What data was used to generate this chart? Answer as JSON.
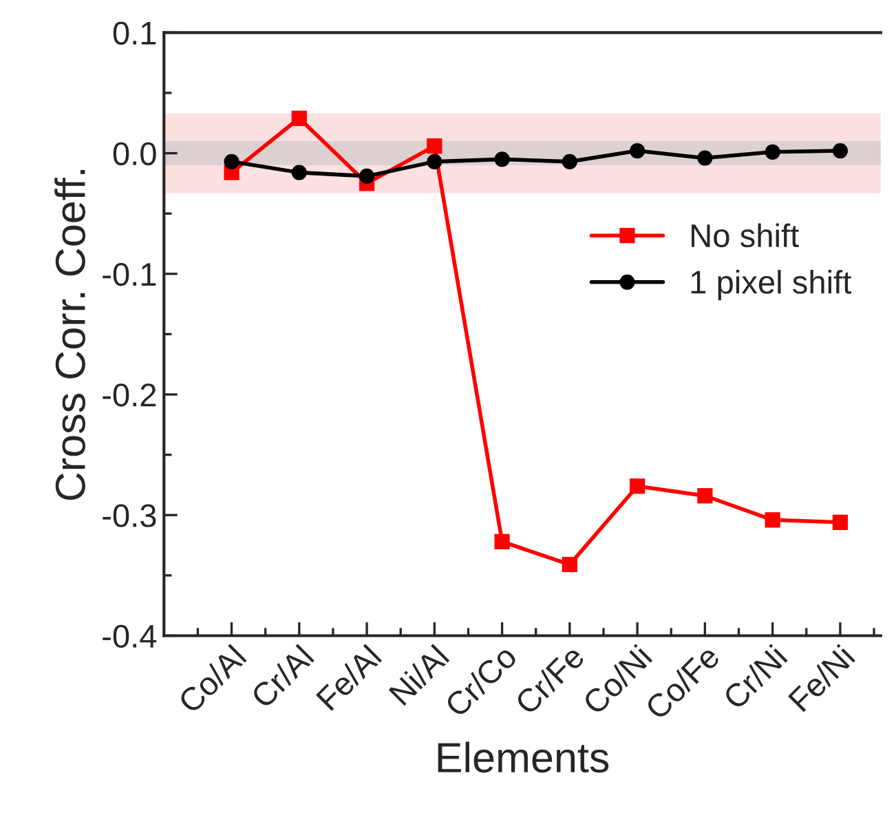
{
  "chart_data": {
    "type": "line",
    "xlabel": "Elements",
    "ylabel": "Cross Corr. Coeff.",
    "categories": [
      "Co/Al",
      "Cr/Al",
      "Fe/Al",
      "Ni/Al",
      "Cr/Co",
      "Cr/Fe",
      "Co/Ni",
      "Co/Fe",
      "Cr/Ni",
      "Fe/Ni"
    ],
    "series": [
      {
        "name": "No shift",
        "color": "#ff0000",
        "marker": "square",
        "values": [
          -0.016,
          0.029,
          -0.025,
          0.006,
          -0.322,
          -0.341,
          -0.276,
          -0.284,
          -0.304,
          -0.306
        ]
      },
      {
        "name": "1 pixel shift",
        "color": "#000000",
        "marker": "circle",
        "values": [
          -0.007,
          -0.016,
          -0.019,
          -0.007,
          -0.005,
          -0.007,
          0.002,
          -0.004,
          0.001,
          0.002
        ]
      }
    ],
    "bands": [
      {
        "axis": "y",
        "from": -0.033,
        "to": 0.033,
        "color": "#fde0e0"
      },
      {
        "axis": "y",
        "from": -0.01,
        "to": 0.01,
        "color": "#dcd0d0"
      }
    ],
    "ylim": [
      -0.4,
      0.1
    ],
    "yticks": [
      -0.4,
      -0.3,
      -0.2,
      -0.1,
      {
        "value": 0.0,
        "label": "0.0"
      },
      0.1
    ],
    "grid": false,
    "legend": "right",
    "line_style": "solid"
  }
}
